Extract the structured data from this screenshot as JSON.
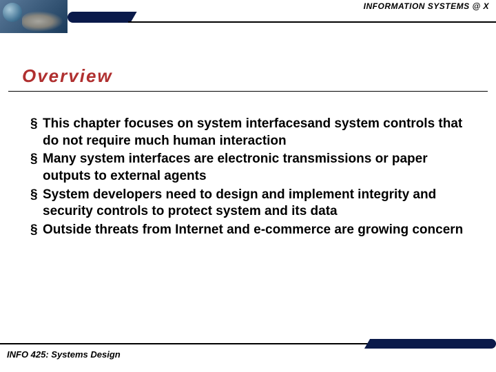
{
  "header": {
    "brand_text": "INFORMATION SYSTEMS @ X"
  },
  "slide": {
    "title": "Overview",
    "bullets": [
      "This chapter focuses on system interfacesand system controls that do not require much human interaction",
      "Many system interfaces are electronic transmissions or paper outputs to external agents",
      "System developers need to design and implement integrity and security controls to protect system and its data",
      "Outside threats from Internet and e-commerce are growing concern"
    ]
  },
  "footer": {
    "course_text": "INFO 425: Systems Design"
  },
  "colors": {
    "title_color": "#b03030",
    "navy": "#0a1a4a",
    "text": "#000000",
    "bg": "#ffffff"
  },
  "typography": {
    "title_fontsize": 26,
    "body_fontsize": 19,
    "header_fontsize": 12,
    "footer_fontsize": 13
  }
}
